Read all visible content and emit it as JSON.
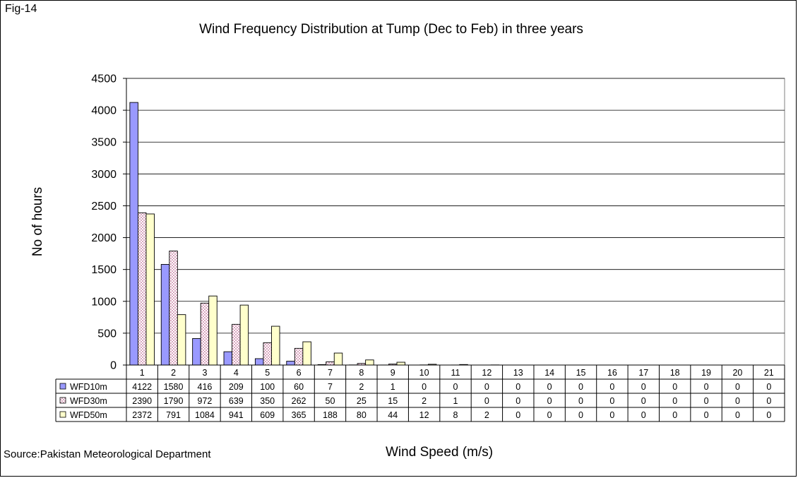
{
  "fig_label": "Fig-14",
  "source": "Source:Pakistan Meteorological Department",
  "chart_data": {
    "type": "bar",
    "title": "Wind Frequency Distribution at Tump (Dec to Feb) in three years",
    "xlabel": "Wind Speed (m/s)",
    "ylabel": "No of hours",
    "ylim": [
      0,
      4500
    ],
    "yticks": [
      0,
      500,
      1000,
      1500,
      2000,
      2500,
      3000,
      3500,
      4000,
      4500
    ],
    "grid": true,
    "legend": "data-table",
    "categories": [
      "1",
      "2",
      "3",
      "4",
      "5",
      "6",
      "7",
      "8",
      "9",
      "10",
      "11",
      "12",
      "13",
      "14",
      "15",
      "16",
      "17",
      "18",
      "19",
      "20",
      "21"
    ],
    "series": [
      {
        "name": "WFD10m",
        "color": "#9999FF",
        "pattern": "solid",
        "values": [
          4122,
          1580,
          416,
          209,
          100,
          60,
          7,
          2,
          1,
          0,
          0,
          0,
          0,
          0,
          0,
          0,
          0,
          0,
          0,
          0,
          0
        ]
      },
      {
        "name": "WFD30m",
        "color": "#993366",
        "pattern": "checker-pink",
        "values": [
          2390,
          1790,
          972,
          639,
          350,
          262,
          50,
          25,
          15,
          2,
          1,
          0,
          0,
          0,
          0,
          0,
          0,
          0,
          0,
          0,
          0
        ]
      },
      {
        "name": "WFD50m",
        "color": "#FFFFCC",
        "pattern": "solid",
        "values": [
          2372,
          791,
          1084,
          941,
          609,
          365,
          188,
          80,
          44,
          12,
          8,
          2,
          0,
          0,
          0,
          0,
          0,
          0,
          0,
          0,
          0
        ]
      }
    ]
  }
}
